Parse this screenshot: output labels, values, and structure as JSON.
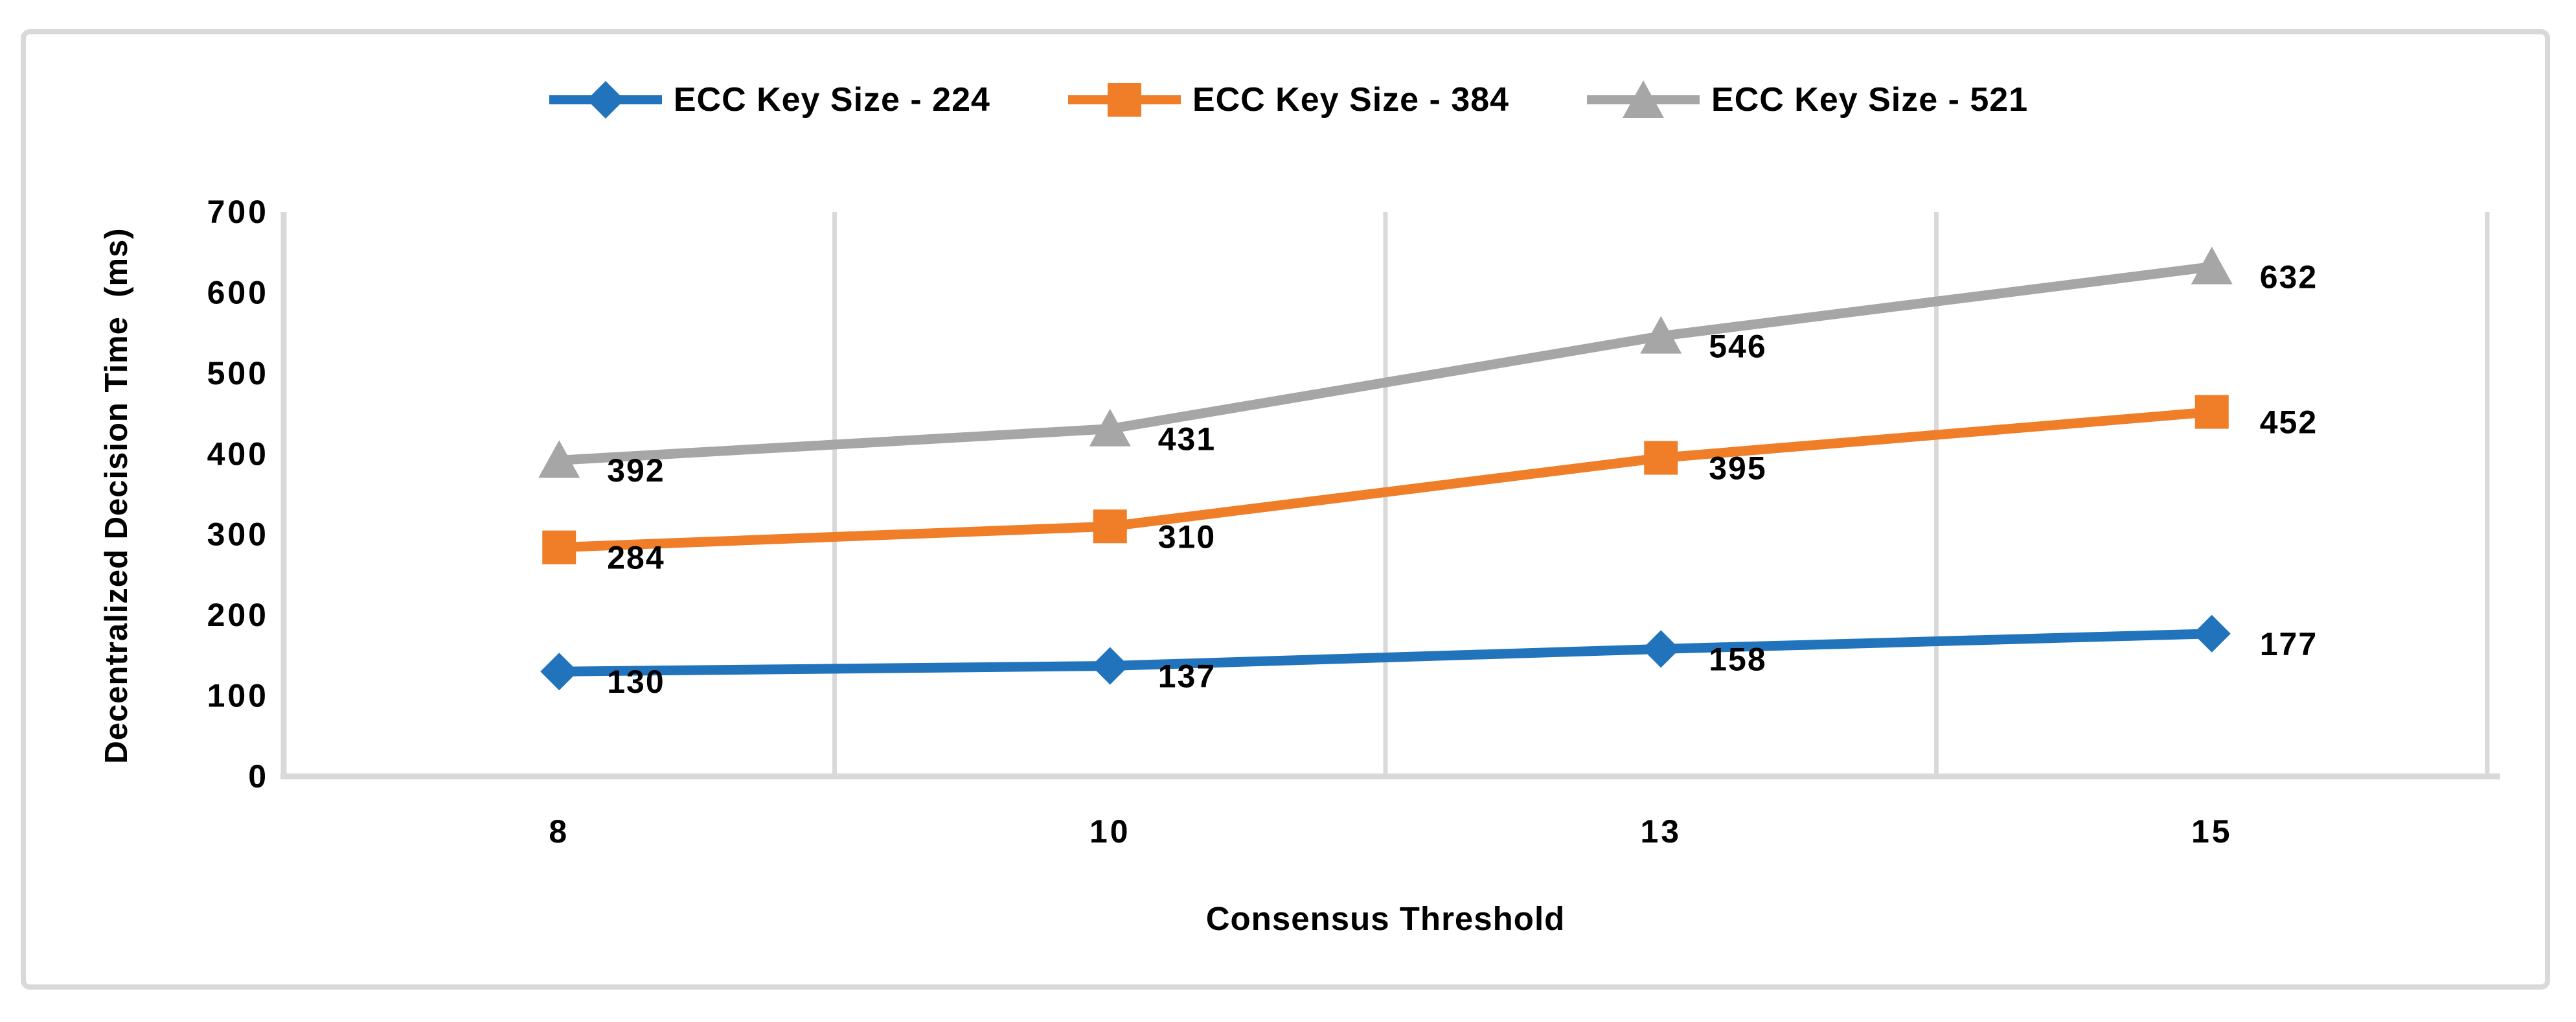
{
  "chart_data": {
    "type": "line",
    "title": "",
    "x": [
      8,
      10,
      13,
      15
    ],
    "x_tick_labels": [
      "8",
      "10",
      "13",
      "15"
    ],
    "xlabel": "Consensus Threshold",
    "ylabel": "Decentralized Decision Time  (ms)",
    "ylim": [
      0,
      700
    ],
    "y_ticks": [
      0,
      100,
      200,
      300,
      400,
      500,
      600,
      700
    ],
    "grid": "vertical-only",
    "legend_position": "top-center",
    "data_labels_position": "right-of-marker",
    "series": [
      {
        "name": "ECC Key Size - 224",
        "marker": "diamond",
        "color": "#2173BB",
        "values": [
          130,
          137,
          158,
          177
        ]
      },
      {
        "name": "ECC Key Size - 384",
        "marker": "square",
        "color": "#F07D28",
        "values": [
          284,
          310,
          395,
          452
        ]
      },
      {
        "name": "ECC Key Size - 521",
        "marker": "triangle",
        "color": "#A6A6A6",
        "values": [
          392,
          431,
          546,
          632
        ]
      }
    ]
  },
  "styles": {
    "background": "#FFFFFF",
    "frame_border_color": "#D9D9D9",
    "axis_line_color": "#D9D9D9",
    "gridline_color": "#D9D9D9",
    "text_color": "#000000"
  }
}
